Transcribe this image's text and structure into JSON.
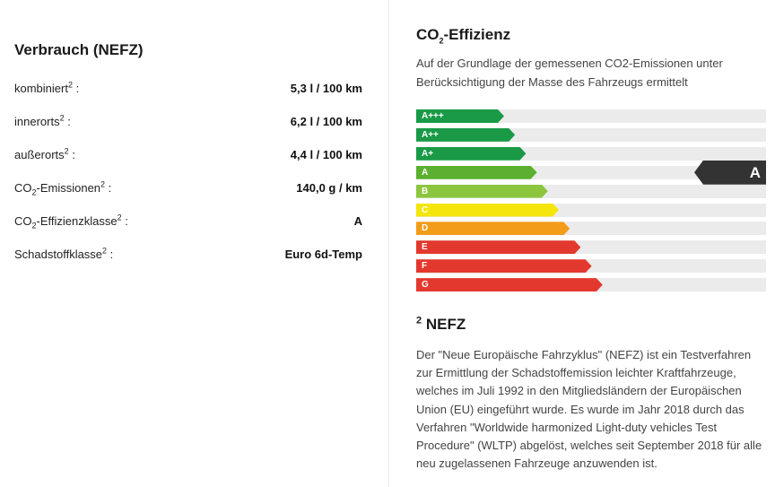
{
  "consumption": {
    "title": "Verbrauch (NEFZ)",
    "rows": [
      {
        "label": "kombiniert",
        "sup": "2",
        "suffix": " :",
        "value": "5,3 l / 100 km"
      },
      {
        "label": "innerorts",
        "sup": "2",
        "suffix": " :",
        "value": "6,2 l / 100 km"
      },
      {
        "label": "außerorts",
        "sup": "2",
        "suffix": " :",
        "value": "4,4 l / 100 km"
      },
      {
        "label_pre": "CO",
        "label_sub": "2",
        "label_post": "-Emissionen",
        "sup": "2",
        "suffix": " :",
        "value": "140,0 g / km"
      },
      {
        "label_pre": "CO",
        "label_sub": "2",
        "label_post": "-Effizienzklasse",
        "sup": "2",
        "suffix": " :",
        "value": "A"
      },
      {
        "label": "Schadstoffklasse",
        "sup": "2",
        "suffix": " :",
        "value": "Euro 6d-Temp"
      }
    ]
  },
  "efficiency": {
    "title_pre": "CO",
    "title_sub": "2",
    "title_post": "-Effizienz",
    "description": "Auf der Grundlage der gemessenen CO2-Emissionen unter Berücksichtigung der Masse des Fahrzeugs ermittelt",
    "classes": [
      {
        "label": "A+++",
        "color": "#1a9a47"
      },
      {
        "label": "A++",
        "color": "#1a9a47"
      },
      {
        "label": "A+",
        "color": "#1a9a47"
      },
      {
        "label": "A",
        "color": "#5cb030"
      },
      {
        "label": "B",
        "color": "#8cc63f"
      },
      {
        "label": "C",
        "color": "#f4e50a"
      },
      {
        "label": "D",
        "color": "#f39c1a"
      },
      {
        "label": "E",
        "color": "#e3382e"
      },
      {
        "label": "F",
        "color": "#e3382e"
      },
      {
        "label": "G",
        "color": "#e3382e"
      }
    ],
    "current_class": "A"
  },
  "footnote": {
    "number": "2",
    "title": "NEFZ",
    "text": "Der \"Neue Europäische Fahrzyklus\" (NEFZ) ist ein Testverfahren zur Ermittlung der Schadstoffemission leichter Kraftfahrzeuge, welches im Juli 1992 in den Mitgliedsländern der Europäischen Union (EU) eingeführt wurde. Es wurde im Jahr 2018 durch das Verfahren \"Worldwide harmonized Light-duty vehicles Test Procedure\" (WLTP) abgelöst, welches seit September 2018 für alle neu zugelassenen Fahrzeuge anzuwenden ist."
  }
}
